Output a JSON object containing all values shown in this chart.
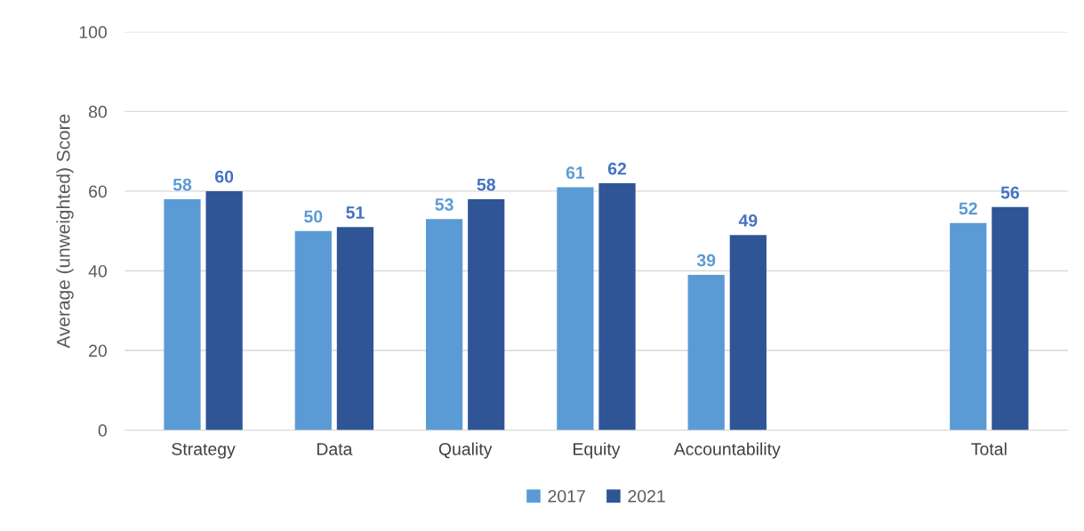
{
  "chart_data": {
    "type": "bar",
    "ylabel": "Average (unweighted) Score",
    "categories": [
      "Strategy",
      "Data",
      "Quality",
      "Equity",
      "Accountability",
      null,
      "Total"
    ],
    "series": [
      {
        "name": "2017",
        "color": "#5b9bd5",
        "values": [
          58,
          50,
          53,
          61,
          39,
          null,
          52
        ]
      },
      {
        "name": "2021",
        "color": "#2f5597",
        "values": [
          60,
          51,
          58,
          62,
          49,
          null,
          56
        ]
      }
    ],
    "ylim": [
      0,
      100
    ],
    "yticks": [
      0,
      20,
      40,
      60,
      80,
      100
    ],
    "grid": "y",
    "legend": "bottom",
    "data_labels": true
  }
}
